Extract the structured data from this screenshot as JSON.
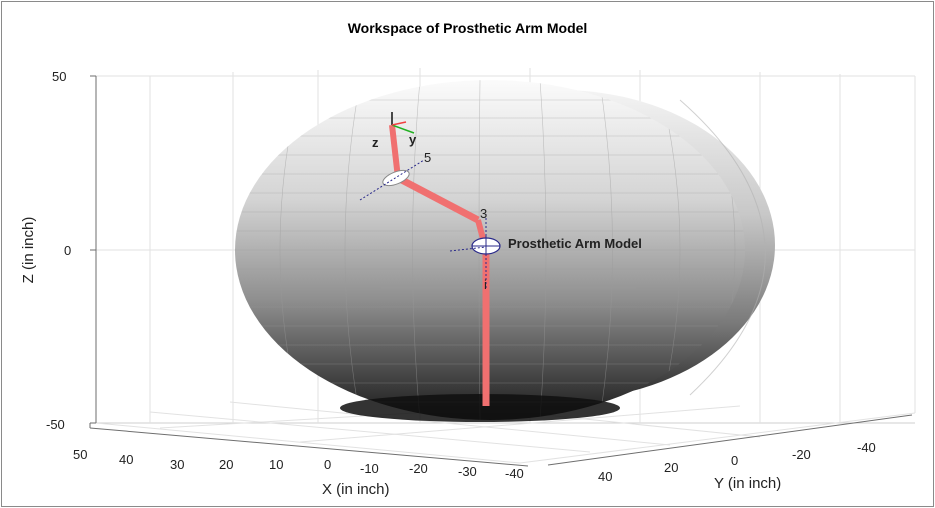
{
  "chart_data": {
    "type": "surface3d",
    "title": "Workspace of Prosthetic Arm Model",
    "xlabel": "X (in inch)",
    "ylabel": "Y (in inch)",
    "zlabel": "Z (in inch)",
    "xlim": [
      -50,
      50
    ],
    "ylim": [
      -50,
      50
    ],
    "zlim": [
      -50,
      50
    ],
    "x_ticks": [
      "50",
      "40",
      "30",
      "20",
      "10",
      "0",
      "-10",
      "-20",
      "-30",
      "-40"
    ],
    "y_ticks": [
      "40",
      "20",
      "0",
      "-20",
      "-40"
    ],
    "z_ticks": [
      "50",
      "0",
      "-50"
    ],
    "grid": true,
    "surface": {
      "shape": "ellipsoid",
      "colormap": "gray"
    },
    "robot": {
      "name": "Prosthetic Arm Model",
      "color": "#f07070",
      "joint_labels": [
        "3",
        "5",
        "i"
      ],
      "end_frame_labels": [
        "z",
        "y"
      ]
    }
  }
}
